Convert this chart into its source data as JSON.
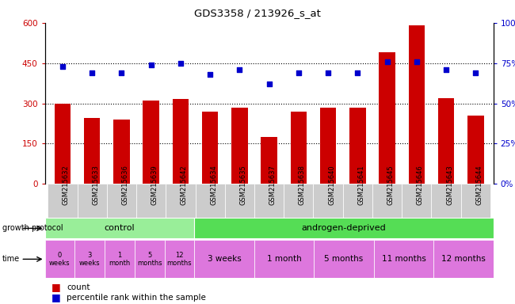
{
  "title": "GDS3358 / 213926_s_at",
  "samples": [
    "GSM215632",
    "GSM215633",
    "GSM215636",
    "GSM215639",
    "GSM215642",
    "GSM215634",
    "GSM215635",
    "GSM215637",
    "GSM215638",
    "GSM215640",
    "GSM215641",
    "GSM215645",
    "GSM215646",
    "GSM215643",
    "GSM215644"
  ],
  "counts": [
    300,
    245,
    240,
    310,
    315,
    270,
    285,
    175,
    270,
    285,
    285,
    490,
    590,
    320,
    255
  ],
  "percentiles": [
    73,
    69,
    69,
    74,
    75,
    68,
    71,
    62,
    69,
    69,
    69,
    76,
    76,
    71,
    69
  ],
  "bar_color": "#cc0000",
  "dot_color": "#0000cc",
  "ylim_left": [
    0,
    600
  ],
  "ylim_right": [
    0,
    100
  ],
  "yticks_left": [
    0,
    150,
    300,
    450,
    600
  ],
  "ytick_labels_left": [
    "0",
    "150",
    "300",
    "450",
    "600"
  ],
  "yticks_right": [
    0,
    25,
    50,
    75,
    100
  ],
  "ytick_labels_right": [
    "0%",
    "25%",
    "50%",
    "75%",
    "100%"
  ],
  "grid_lines": [
    150,
    300,
    450
  ],
  "control_color": "#99ee99",
  "androgen_color": "#55dd55",
  "time_color": "#dd77dd",
  "background_color": "#ffffff",
  "tick_label_color_left": "#cc0000",
  "tick_label_color_right": "#0000cc",
  "sample_bg_color": "#cccccc",
  "growth_protocol_label": "growth protocol",
  "time_label": "time",
  "control_text": "control",
  "androgen_text": "androgen-deprived",
  "time_labels_control": [
    "0\nweeks",
    "3\nweeks",
    "1\nmonth",
    "5\nmonths",
    "12\nmonths"
  ],
  "time_labels_androgen": [
    "3 weeks",
    "1 month",
    "5 months",
    "11 months",
    "12 months"
  ],
  "legend_count_color": "#cc0000",
  "legend_dot_color": "#0000cc"
}
